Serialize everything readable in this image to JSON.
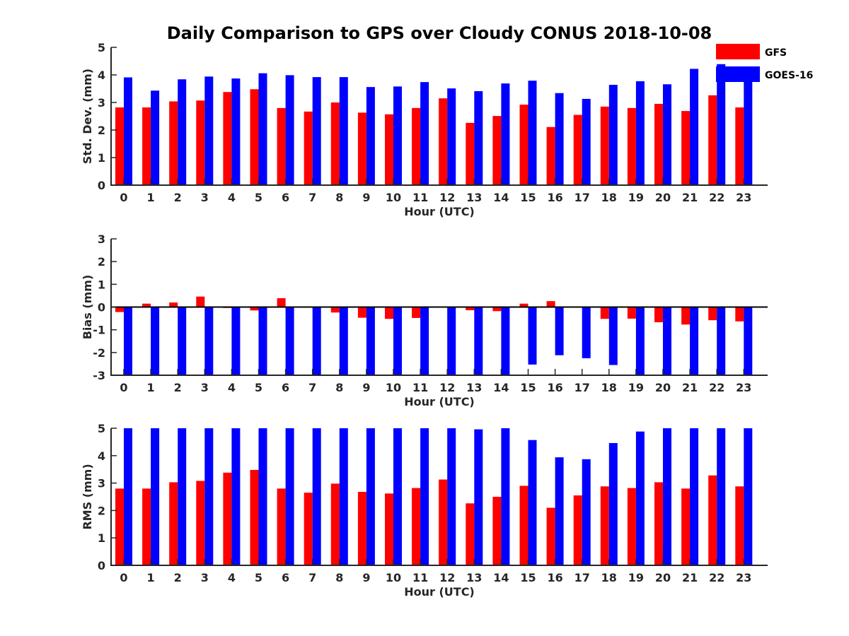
{
  "figure": {
    "title": "Daily Comparison to GPS over Cloudy CONUS 2018-10-08"
  },
  "legend": {
    "placement": "top-right",
    "entries": [
      {
        "name": "GFS",
        "color": "#ff0000"
      },
      {
        "name": "GOES-16",
        "color": "#0000ff"
      }
    ]
  },
  "chart_data": [
    {
      "type": "bar",
      "ylabel": "Std. Dev. (mm)",
      "xlabel": "Hour (UTC)",
      "ylim": [
        0,
        5
      ],
      "yticks": [
        0,
        1,
        2,
        3,
        4,
        5
      ],
      "categories": [
        "0",
        "1",
        "2",
        "3",
        "4",
        "5",
        "6",
        "7",
        "8",
        "9",
        "10",
        "11",
        "12",
        "13",
        "14",
        "15",
        "16",
        "17",
        "18",
        "19",
        "20",
        "21",
        "22",
        "23"
      ],
      "series": [
        {
          "name": "GFS",
          "color": "#ff0000",
          "values": [
            2.82,
            2.82,
            3.04,
            3.07,
            3.38,
            3.48,
            2.8,
            2.67,
            3.0,
            2.63,
            2.57,
            2.8,
            3.15,
            2.26,
            2.51,
            2.92,
            2.11,
            2.55,
            2.85,
            2.8,
            2.95,
            2.69,
            3.26,
            2.82
          ]
        },
        {
          "name": "GOES-16",
          "color": "#0000ff",
          "values": [
            3.91,
            3.43,
            3.84,
            3.94,
            3.87,
            4.06,
            3.99,
            3.92,
            3.92,
            3.56,
            3.58,
            3.74,
            3.51,
            3.41,
            3.69,
            3.79,
            3.34,
            3.13,
            3.64,
            3.77,
            3.66,
            4.22,
            4.39,
            3.98
          ]
        }
      ]
    },
    {
      "type": "bar",
      "ylabel": "Bias (mm)",
      "xlabel": "Hour (UTC)",
      "ylim": [
        -3,
        3
      ],
      "yticks": [
        -3,
        -2,
        -1,
        0,
        1,
        2,
        3
      ],
      "categories": [
        "0",
        "1",
        "2",
        "3",
        "4",
        "5",
        "6",
        "7",
        "8",
        "9",
        "10",
        "11",
        "12",
        "13",
        "14",
        "15",
        "16",
        "17",
        "18",
        "19",
        "20",
        "21",
        "22",
        "23"
      ],
      "series": [
        {
          "name": "GFS",
          "color": "#ff0000",
          "values": [
            -0.22,
            0.15,
            0.2,
            0.46,
            -0.04,
            -0.15,
            0.39,
            -0.02,
            -0.24,
            -0.47,
            -0.52,
            -0.48,
            0.01,
            -0.14,
            -0.18,
            0.15,
            0.26,
            0.03,
            -0.52,
            -0.51,
            -0.67,
            -0.77,
            -0.58,
            -0.63
          ]
        },
        {
          "name": "GOES-16",
          "color": "#0000ff",
          "values": [
            -3.5,
            -3.5,
            -3.5,
            -3.5,
            -3.5,
            -3.5,
            -3.5,
            -3.5,
            -3.5,
            -3.5,
            -3.5,
            -3.5,
            -3.5,
            -3.5,
            -3.5,
            -2.53,
            -2.12,
            -2.25,
            -2.55,
            -3.5,
            -3.5,
            -3.5,
            -3.5,
            -3.5
          ]
        }
      ]
    },
    {
      "type": "bar",
      "ylabel": "RMS (mm)",
      "xlabel": "Hour (UTC)",
      "ylim": [
        0,
        5
      ],
      "yticks": [
        0,
        1,
        2,
        3,
        4,
        5
      ],
      "categories": [
        "0",
        "1",
        "2",
        "3",
        "4",
        "5",
        "6",
        "7",
        "8",
        "9",
        "10",
        "11",
        "12",
        "13",
        "14",
        "15",
        "16",
        "17",
        "18",
        "19",
        "20",
        "21",
        "22",
        "23"
      ],
      "series": [
        {
          "name": "GFS",
          "color": "#ff0000",
          "values": [
            2.8,
            2.8,
            3.03,
            3.08,
            3.38,
            3.48,
            2.8,
            2.65,
            2.98,
            2.68,
            2.62,
            2.82,
            3.13,
            2.26,
            2.5,
            2.9,
            2.1,
            2.55,
            2.88,
            2.82,
            3.03,
            2.8,
            3.28,
            2.88
          ]
        },
        {
          "name": "GOES-16",
          "color": "#0000ff",
          "values": [
            5.5,
            5.5,
            5.5,
            5.5,
            5.5,
            5.5,
            5.5,
            5.5,
            5.5,
            5.5,
            5.5,
            5.5,
            5.5,
            4.96,
            5.5,
            4.57,
            3.94,
            3.87,
            4.46,
            4.88,
            5.5,
            5.5,
            5.5,
            5.5
          ]
        }
      ]
    }
  ]
}
